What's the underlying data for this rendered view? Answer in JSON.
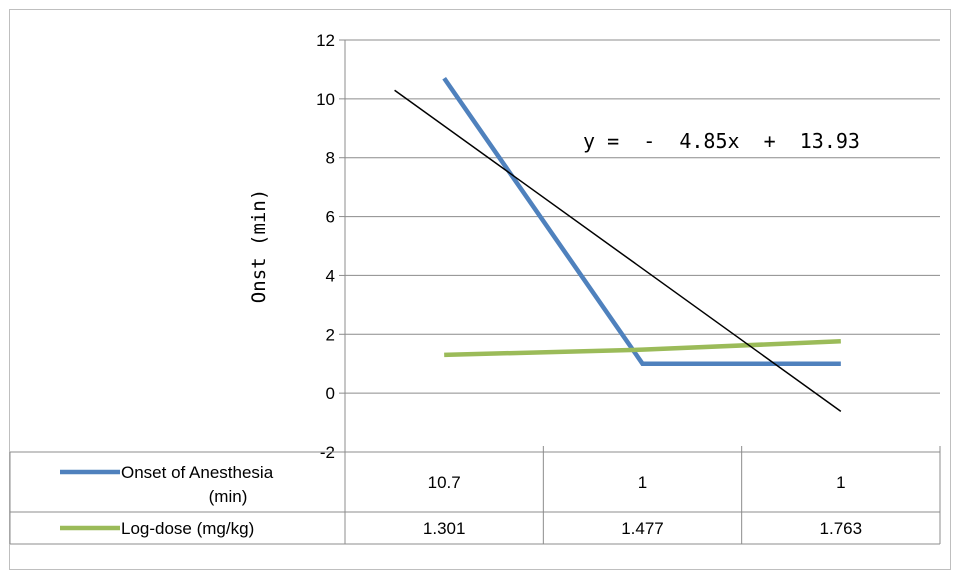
{
  "chart_data": {
    "type": "line",
    "ylabel": "Onst (min)",
    "ylim": [
      -2,
      12
    ],
    "y_ticks": [
      "12",
      "10",
      "8",
      "6",
      "4",
      "2",
      "0",
      "-2"
    ],
    "grid": true,
    "categories": [
      "",
      "",
      ""
    ],
    "series": [
      {
        "name": "Onset of Anesthesia (min)",
        "name_lines": [
          "Onset of Anesthesia",
          "(min)"
        ],
        "values": [
          10.7,
          1,
          1
        ],
        "labels": [
          "10.7",
          "1",
          "1"
        ],
        "color": "#4f81bd"
      },
      {
        "name": "Log-dose (mg/kg)",
        "name_lines": [
          "Log-dose (mg/kg)"
        ],
        "values": [
          1.301,
          1.477,
          1.763
        ],
        "labels": [
          "1.301",
          "1.477",
          "1.763"
        ],
        "color": "#9bbb59"
      }
    ],
    "trendline": {
      "equation": "y = - 4.85x + 13.93",
      "slope": -4.85,
      "intercept": 13.93,
      "x_start": 0.75,
      "x_end": 3.0,
      "color": "#000000"
    },
    "legend": "data-table"
  }
}
